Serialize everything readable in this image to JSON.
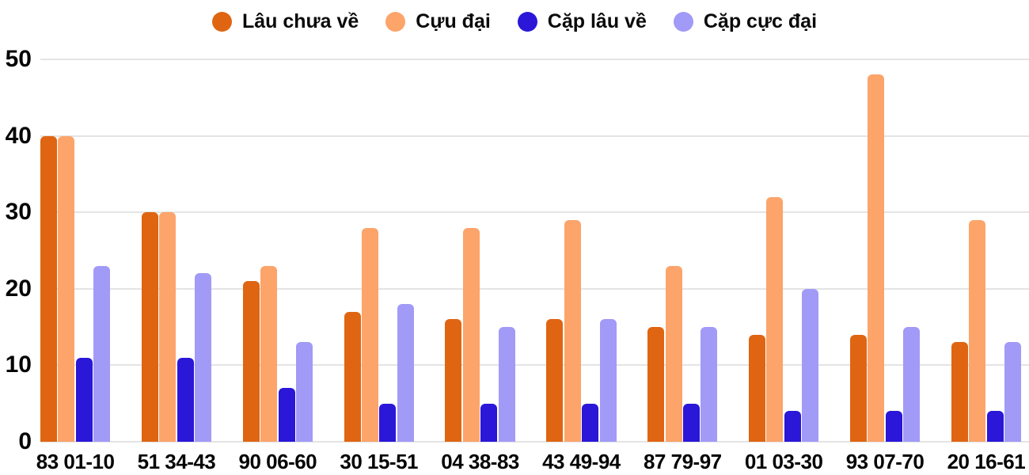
{
  "chart_data": {
    "type": "bar",
    "title": "",
    "xlabel": "",
    "ylabel": "",
    "categories": [
      "83 01-10",
      "51 34-43",
      "90 06-60",
      "30 15-51",
      "04 38-83",
      "43 49-94",
      "87 79-97",
      "01 03-30",
      "93 07-70",
      "20 16-61"
    ],
    "series": [
      {
        "name": "Lâu chưa về",
        "color": "#DF6512",
        "values": [
          40,
          30,
          21,
          17,
          16,
          16,
          15,
          14,
          14,
          13
        ]
      },
      {
        "name": "Cựu đại",
        "color": "#FCA46A",
        "values": [
          40,
          30,
          23,
          28,
          28,
          29,
          23,
          32,
          48,
          29
        ]
      },
      {
        "name": "Cặp lâu về",
        "color": "#2A17D7",
        "values": [
          11,
          11,
          7,
          5,
          5,
          5,
          5,
          4,
          4,
          4
        ]
      },
      {
        "name": "Cặp cực đại",
        "color": "#A29AF7",
        "values": [
          23,
          22,
          13,
          18,
          15,
          16,
          15,
          20,
          15,
          13
        ]
      }
    ],
    "ylim": [
      0,
      50
    ],
    "yticks": [
      0,
      10,
      20,
      30,
      40,
      50
    ],
    "grid": true,
    "gridline_color": "#E4E4E4",
    "legend_position": "top",
    "background": "#FFFFFF"
  }
}
